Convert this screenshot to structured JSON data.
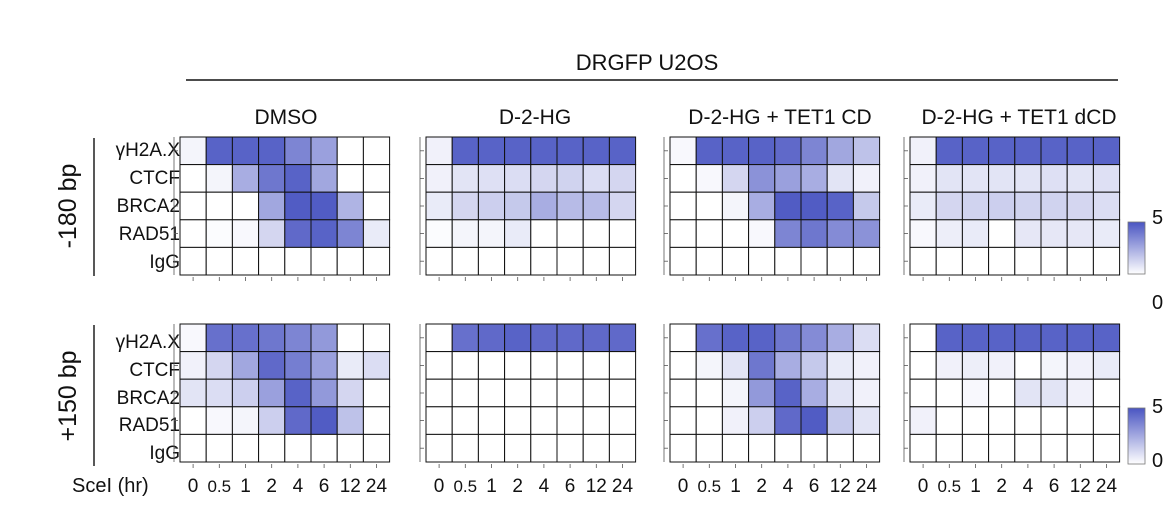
{
  "title": "DRGFP U2OS",
  "x_axis_label": "SceI (hr)",
  "timepoints": [
    "0",
    "0.5",
    "1",
    "2",
    "4",
    "6",
    "12",
    "24"
  ],
  "targets": [
    "γH2A.X",
    "CTCF",
    "BRCA2",
    "RAD51",
    "IgG"
  ],
  "colors": {
    "low": "#ffffff",
    "high": "#4a55c2",
    "border": "#111111"
  },
  "chart_data": {
    "type": "heatmap",
    "title": "DRGFP U2OS",
    "xlabel": "SceI (hr)",
    "x": [
      "0",
      "0.5",
      "1",
      "2",
      "4",
      "6",
      "12",
      "24"
    ],
    "rows": [
      "γH2A.X",
      "CTCF",
      "BRCA2",
      "RAD51",
      "IgG"
    ],
    "conditions": [
      "DMSO",
      "D-2-HG",
      "D-2-HG + TET1 CD",
      "D-2-HG + TET1 dCD"
    ],
    "positions": [
      "-180 bp",
      "+150 bp"
    ],
    "scales": [
      {
        "position": "-180 bp",
        "min_label": "0",
        "max_label": "5",
        "range": [
          0,
          5
        ]
      },
      {
        "position": "+150 bp",
        "min_label": "0",
        "max_label": "5",
        "range": [
          0,
          5
        ]
      }
    ],
    "panels": [
      {
        "position": "-180 bp",
        "condition": "DMSO",
        "values": [
          [
            0.3,
            4.6,
            4.6,
            4.6,
            3.6,
            2.8,
            0.0,
            0.0
          ],
          [
            0.0,
            0.3,
            2.4,
            4.0,
            4.6,
            2.6,
            0.0,
            0.0
          ],
          [
            0.0,
            0.0,
            0.0,
            2.6,
            4.8,
            4.8,
            2.2,
            0.0
          ],
          [
            0.0,
            0.1,
            0.2,
            1.2,
            4.4,
            4.6,
            3.6,
            0.6
          ],
          [
            0.0,
            0.0,
            0.0,
            0.0,
            0.0,
            0.0,
            0.0,
            0.0
          ]
        ]
      },
      {
        "position": "-180 bp",
        "condition": "D-2-HG",
        "values": [
          [
            0.4,
            4.6,
            4.6,
            4.6,
            4.6,
            4.6,
            4.6,
            4.6
          ],
          [
            0.4,
            0.8,
            0.9,
            1.0,
            1.2,
            1.3,
            1.0,
            1.2
          ],
          [
            0.6,
            1.2,
            1.4,
            1.6,
            2.4,
            2.0,
            2.0,
            1.2
          ],
          [
            0.1,
            0.3,
            0.3,
            0.6,
            0.0,
            0.0,
            0.0,
            0.0
          ],
          [
            0.0,
            0.0,
            0.0,
            0.0,
            0.0,
            0.0,
            0.0,
            0.0
          ]
        ]
      },
      {
        "position": "-180 bp",
        "condition": "D-2-HG + TET1 CD",
        "values": [
          [
            0.2,
            4.6,
            4.6,
            4.6,
            4.4,
            3.6,
            2.6,
            1.8
          ],
          [
            0.0,
            0.2,
            1.2,
            3.2,
            2.8,
            2.4,
            0.8,
            0.4
          ],
          [
            0.0,
            0.0,
            0.3,
            2.4,
            4.8,
            4.8,
            4.6,
            1.6
          ],
          [
            0.0,
            0.0,
            0.0,
            0.2,
            3.6,
            4.0,
            3.4,
            3.2
          ],
          [
            0.0,
            0.0,
            0.0,
            0.0,
            0.0,
            0.0,
            0.0,
            0.0
          ]
        ]
      },
      {
        "position": "-180 bp",
        "condition": "D-2-HG + TET1 dCD",
        "values": [
          [
            0.4,
            4.6,
            4.6,
            4.6,
            4.6,
            4.6,
            4.6,
            4.6
          ],
          [
            0.4,
            0.8,
            0.8,
            0.8,
            0.8,
            0.9,
            0.8,
            0.9
          ],
          [
            0.6,
            1.2,
            1.3,
            1.4,
            1.3,
            1.3,
            1.2,
            1.0
          ],
          [
            0.2,
            0.5,
            0.6,
            0.0,
            0.7,
            0.7,
            0.7,
            0.6
          ],
          [
            0.0,
            0.0,
            0.0,
            0.0,
            0.0,
            0.0,
            0.0,
            0.0
          ]
        ]
      },
      {
        "position": "+150 bp",
        "condition": "DMSO",
        "values": [
          [
            0.2,
            4.2,
            4.2,
            4.0,
            3.6,
            3.0,
            0.0,
            0.0
          ],
          [
            0.4,
            1.2,
            2.6,
            4.4,
            3.8,
            2.8,
            0.6,
            1.0
          ],
          [
            0.8,
            1.0,
            1.4,
            2.8,
            4.6,
            3.0,
            1.2,
            0.0
          ],
          [
            0.0,
            0.2,
            0.3,
            1.4,
            4.4,
            4.8,
            1.8,
            0.0
          ],
          [
            0.0,
            0.0,
            0.0,
            0.0,
            0.0,
            0.0,
            0.0,
            0.0
          ]
        ]
      },
      {
        "position": "+150 bp",
        "condition": "D-2-HG",
        "values": [
          [
            0.0,
            4.2,
            4.4,
            4.6,
            4.4,
            4.4,
            4.4,
            4.4
          ],
          [
            0.0,
            0.0,
            0.0,
            0.0,
            0.0,
            0.0,
            0.0,
            0.0
          ],
          [
            0.0,
            0.0,
            0.0,
            0.0,
            0.0,
            0.0,
            0.0,
            0.0
          ],
          [
            0.0,
            0.0,
            0.0,
            0.0,
            0.0,
            0.0,
            0.0,
            0.0
          ],
          [
            0.0,
            0.0,
            0.0,
            0.0,
            0.0,
            0.0,
            0.0,
            0.0
          ]
        ]
      },
      {
        "position": "+150 bp",
        "condition": "D-2-HG + TET1 CD",
        "values": [
          [
            0.0,
            4.2,
            4.6,
            4.6,
            4.0,
            3.4,
            2.4,
            1.0
          ],
          [
            0.0,
            0.3,
            0.8,
            4.0,
            2.4,
            1.6,
            0.6,
            0.4
          ],
          [
            0.0,
            0.0,
            0.3,
            3.0,
            4.6,
            2.4,
            0.8,
            0.4
          ],
          [
            0.0,
            0.0,
            0.4,
            1.4,
            4.4,
            4.8,
            1.6,
            0.8
          ],
          [
            0.0,
            0.0,
            0.0,
            0.0,
            0.0,
            0.0,
            0.0,
            0.0
          ]
        ]
      },
      {
        "position": "+150 bp",
        "condition": "D-2-HG + TET1 dCD",
        "values": [
          [
            0.0,
            4.6,
            4.6,
            4.6,
            4.6,
            4.6,
            4.6,
            4.6
          ],
          [
            0.0,
            0.4,
            0.5,
            0.4,
            0.0,
            0.3,
            0.4,
            0.6
          ],
          [
            0.0,
            0.0,
            0.2,
            0.0,
            0.8,
            0.8,
            0.4,
            0.0
          ],
          [
            0.4,
            0.0,
            0.0,
            0.0,
            0.0,
            0.0,
            0.0,
            0.0
          ],
          [
            0.0,
            0.0,
            0.0,
            0.0,
            0.0,
            0.0,
            0.0,
            0.0
          ]
        ]
      }
    ]
  }
}
